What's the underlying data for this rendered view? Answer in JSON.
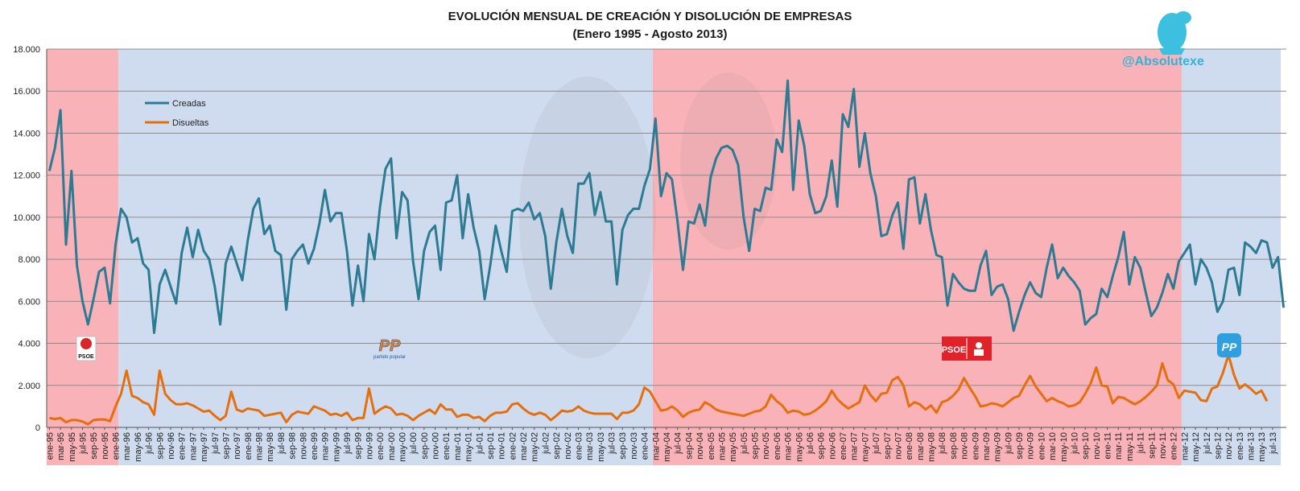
{
  "handle": "@Absolutexe",
  "logos": {
    "psoe": "PSOE",
    "pp": "PP",
    "pp_caption": "partido popular"
  },
  "colors": {
    "creadas": "#2d7b92",
    "disueltas": "#e56f0d",
    "psoe_band": "#f9b3b8",
    "pp_band": "#cfdcf0",
    "grid": "#8c8c8c"
  },
  "chart_data": {
    "type": "line",
    "title": "EVOLUCIÓN MENSUAL DE CREACIÓN Y DISOLUCIÓN DE EMPRESAS",
    "subtitle": "(Enero 1995 - Agosto 2013)",
    "xlabel": "",
    "ylabel": "",
    "ylim": [
      0,
      18000
    ],
    "y_ticks": [
      "0",
      "2.000",
      "4.000",
      "6.000",
      "8.000",
      "10.000",
      "12.000",
      "14.000",
      "16.000",
      "18.000"
    ],
    "grid": true,
    "legend": "top-left",
    "x_labels": [
      "ene-95",
      "mar-95",
      "may-95",
      "jul-95",
      "sep-95",
      "nov-95",
      "ene-96",
      "mar-96",
      "may-96",
      "jul-96",
      "sep-96",
      "nov-96",
      "ene-97",
      "mar-97",
      "may-97",
      "jul-97",
      "sep-97",
      "nov-97",
      "ene-98",
      "mar-98",
      "may-98",
      "jul-98",
      "sep-98",
      "nov-98",
      "ene-99",
      "mar-99",
      "may-99",
      "jul-99",
      "sep-99",
      "nov-99",
      "ene-00",
      "mar-00",
      "may-00",
      "jul-00",
      "sep-00",
      "nov-00",
      "ene-01",
      "mar-01",
      "may-01",
      "jul-01",
      "sep-01",
      "nov-01",
      "ene-02",
      "mar-02",
      "may-02",
      "jul-02",
      "sep-02",
      "nov-02",
      "ene-03",
      "mar-03",
      "may-03",
      "jul-03",
      "sep-03",
      "nov-03",
      "ene-04",
      "mar-04",
      "may-04",
      "jul-04",
      "sep-04",
      "nov-04",
      "ene-05",
      "mar-05",
      "may-05",
      "jul-05",
      "sep-05",
      "nov-05",
      "ene-06",
      "mar-06",
      "may-06",
      "jul-06",
      "sep-06",
      "nov-06",
      "ene-07",
      "mar-07",
      "may-07",
      "jul-07",
      "sep-07",
      "nov-07",
      "ene-08",
      "mar-08",
      "may-08",
      "jul-08",
      "sep-08",
      "nov-08",
      "ene-09",
      "mar-09",
      "may-09",
      "jul-09",
      "sep-09",
      "nov-09",
      "ene-10",
      "mar-10",
      "may-10",
      "jul-10",
      "sep-10",
      "nov-10",
      "ene-11",
      "mar-11",
      "may-11",
      "jul-11",
      "sep-11",
      "nov-11",
      "ene-12",
      "mar-12",
      "may-12",
      "jul-12",
      "sep-12",
      "nov-12",
      "ene-13",
      "mar-13",
      "may-13",
      "jul-13"
    ],
    "periods": [
      {
        "party": "PSOE",
        "from_month": 0,
        "to_month": 13
      },
      {
        "party": "PP",
        "from_month": 13,
        "to_month": 110
      },
      {
        "party": "PSOE",
        "from_month": 110,
        "to_month": 206
      },
      {
        "party": "PP",
        "from_month": 206,
        "to_month": 224
      }
    ],
    "series": [
      {
        "name": "Creadas",
        "values": [
          12200,
          13300,
          15100,
          8700,
          12200,
          7700,
          6000,
          4900,
          6100,
          7400,
          7600,
          5900,
          8700,
          10400,
          10000,
          8800,
          9000,
          7800,
          7500,
          4500,
          6800,
          7500,
          6700,
          5900,
          8300,
          9500,
          8100,
          9400,
          8400,
          8000,
          6700,
          4900,
          7800,
          8600,
          7800,
          7000,
          8900,
          10400,
          10900,
          9200,
          9600,
          8400,
          8200,
          5600,
          8000,
          8400,
          8700,
          7800,
          8500,
          9700,
          11300,
          9800,
          10200,
          10200,
          8400,
          5800,
          7700,
          6000,
          9200,
          8000,
          10500,
          12300,
          12800,
          9000,
          11200,
          10800,
          7900,
          6100,
          8400,
          9300,
          9600,
          7500,
          10700,
          10800,
          12000,
          9000,
          11100,
          9500,
          8400,
          6100,
          7700,
          9600,
          8400,
          7400,
          10300,
          10400,
          10300,
          10700,
          9900,
          10200,
          9100,
          6600,
          8800,
          10400,
          9100,
          8300,
          11600,
          11600,
          12100,
          10100,
          11200,
          9800,
          9800,
          6800,
          9400,
          10100,
          10400,
          10400,
          11500,
          12300,
          14700,
          11000,
          12100,
          11800,
          9800,
          7500,
          9800,
          9700,
          10600,
          9600,
          11900,
          12800,
          13300,
          13400,
          13200,
          12500,
          10000,
          8400,
          10400,
          10300,
          11400,
          11300,
          13700,
          13100,
          16500,
          11300,
          14600,
          13400,
          11100,
          10200,
          10300,
          11000,
          12700,
          10500,
          14900,
          14300,
          16100,
          12400,
          14000,
          12100,
          11000,
          9100,
          9200,
          10100,
          10700,
          8500,
          11800,
          11900,
          9700,
          11100,
          9400,
          8200,
          8100,
          5800,
          7300,
          6900,
          6600,
          6500,
          6500,
          7700,
          8400,
          6300,
          6700,
          6800,
          6100,
          4600,
          5500,
          6300,
          6900,
          6400,
          6200,
          7600,
          8700,
          7100,
          7600,
          7200,
          6900,
          6500,
          4900,
          5200,
          5400,
          6600,
          6200,
          7200,
          8100,
          9300,
          6800,
          8100,
          7600,
          6400,
          5300,
          5700,
          6400,
          7300,
          6600,
          7900,
          8300,
          8700,
          6800,
          8000,
          7600,
          6900,
          5500,
          6000,
          7500,
          7600,
          6300,
          8800,
          8600,
          8300,
          8900,
          8800,
          7600,
          8100,
          5700
        ]
      },
      {
        "name": "Disueltas",
        "values": [
          450,
          400,
          450,
          250,
          350,
          350,
          280,
          150,
          350,
          380,
          380,
          300,
          1000,
          1600,
          2700,
          1500,
          1400,
          1200,
          1100,
          600,
          2700,
          1600,
          1300,
          1100,
          1100,
          1150,
          1050,
          900,
          750,
          800,
          550,
          350,
          550,
          1700,
          850,
          750,
          900,
          850,
          800,
          550,
          600,
          650,
          700,
          250,
          600,
          750,
          700,
          650,
          1000,
          900,
          800,
          600,
          650,
          550,
          700,
          350,
          450,
          450,
          1850,
          650,
          850,
          1000,
          900,
          600,
          650,
          550,
          350,
          550,
          700,
          850,
          650,
          1100,
          850,
          850,
          500,
          600,
          600,
          450,
          500,
          300,
          550,
          700,
          700,
          750,
          1100,
          1150,
          900,
          700,
          600,
          700,
          600,
          350,
          550,
          800,
          750,
          800,
          1000,
          800,
          700,
          650,
          650,
          650,
          650,
          400,
          700,
          700,
          800,
          1100,
          1900,
          1700,
          1250,
          800,
          850,
          1000,
          800,
          500,
          700,
          800,
          850,
          1200,
          1050,
          850,
          750,
          700,
          650,
          600,
          550,
          650,
          750,
          800,
          1000,
          1550,
          1250,
          1050,
          700,
          800,
          750,
          600,
          650,
          800,
          1000,
          1250,
          1750,
          1350,
          1100,
          900,
          1050,
          1200,
          2000,
          1550,
          1250,
          1600,
          1650,
          2250,
          2400,
          2000,
          1000,
          1200,
          1100,
          850,
          1050,
          700,
          1200,
          1300,
          1500,
          1800,
          2350,
          1900,
          1500,
          1000,
          1050,
          1150,
          1100,
          1000,
          1200,
          1400,
          1500,
          2000,
          2450,
          1950,
          1600,
          1250,
          1400,
          1250,
          1150,
          1000,
          1050,
          1200,
          1600,
          2100,
          2850,
          2000,
          1950,
          1150,
          1450,
          1400,
          1250,
          1100,
          1250,
          1450,
          1700,
          2000,
          3050,
          2250,
          2050,
          1400,
          1750,
          1700,
          1650,
          1300,
          1250,
          1850,
          1950,
          2600,
          3450,
          2500,
          1850,
          2050,
          1850,
          1600,
          1750,
          1250
        ]
      }
    ]
  }
}
